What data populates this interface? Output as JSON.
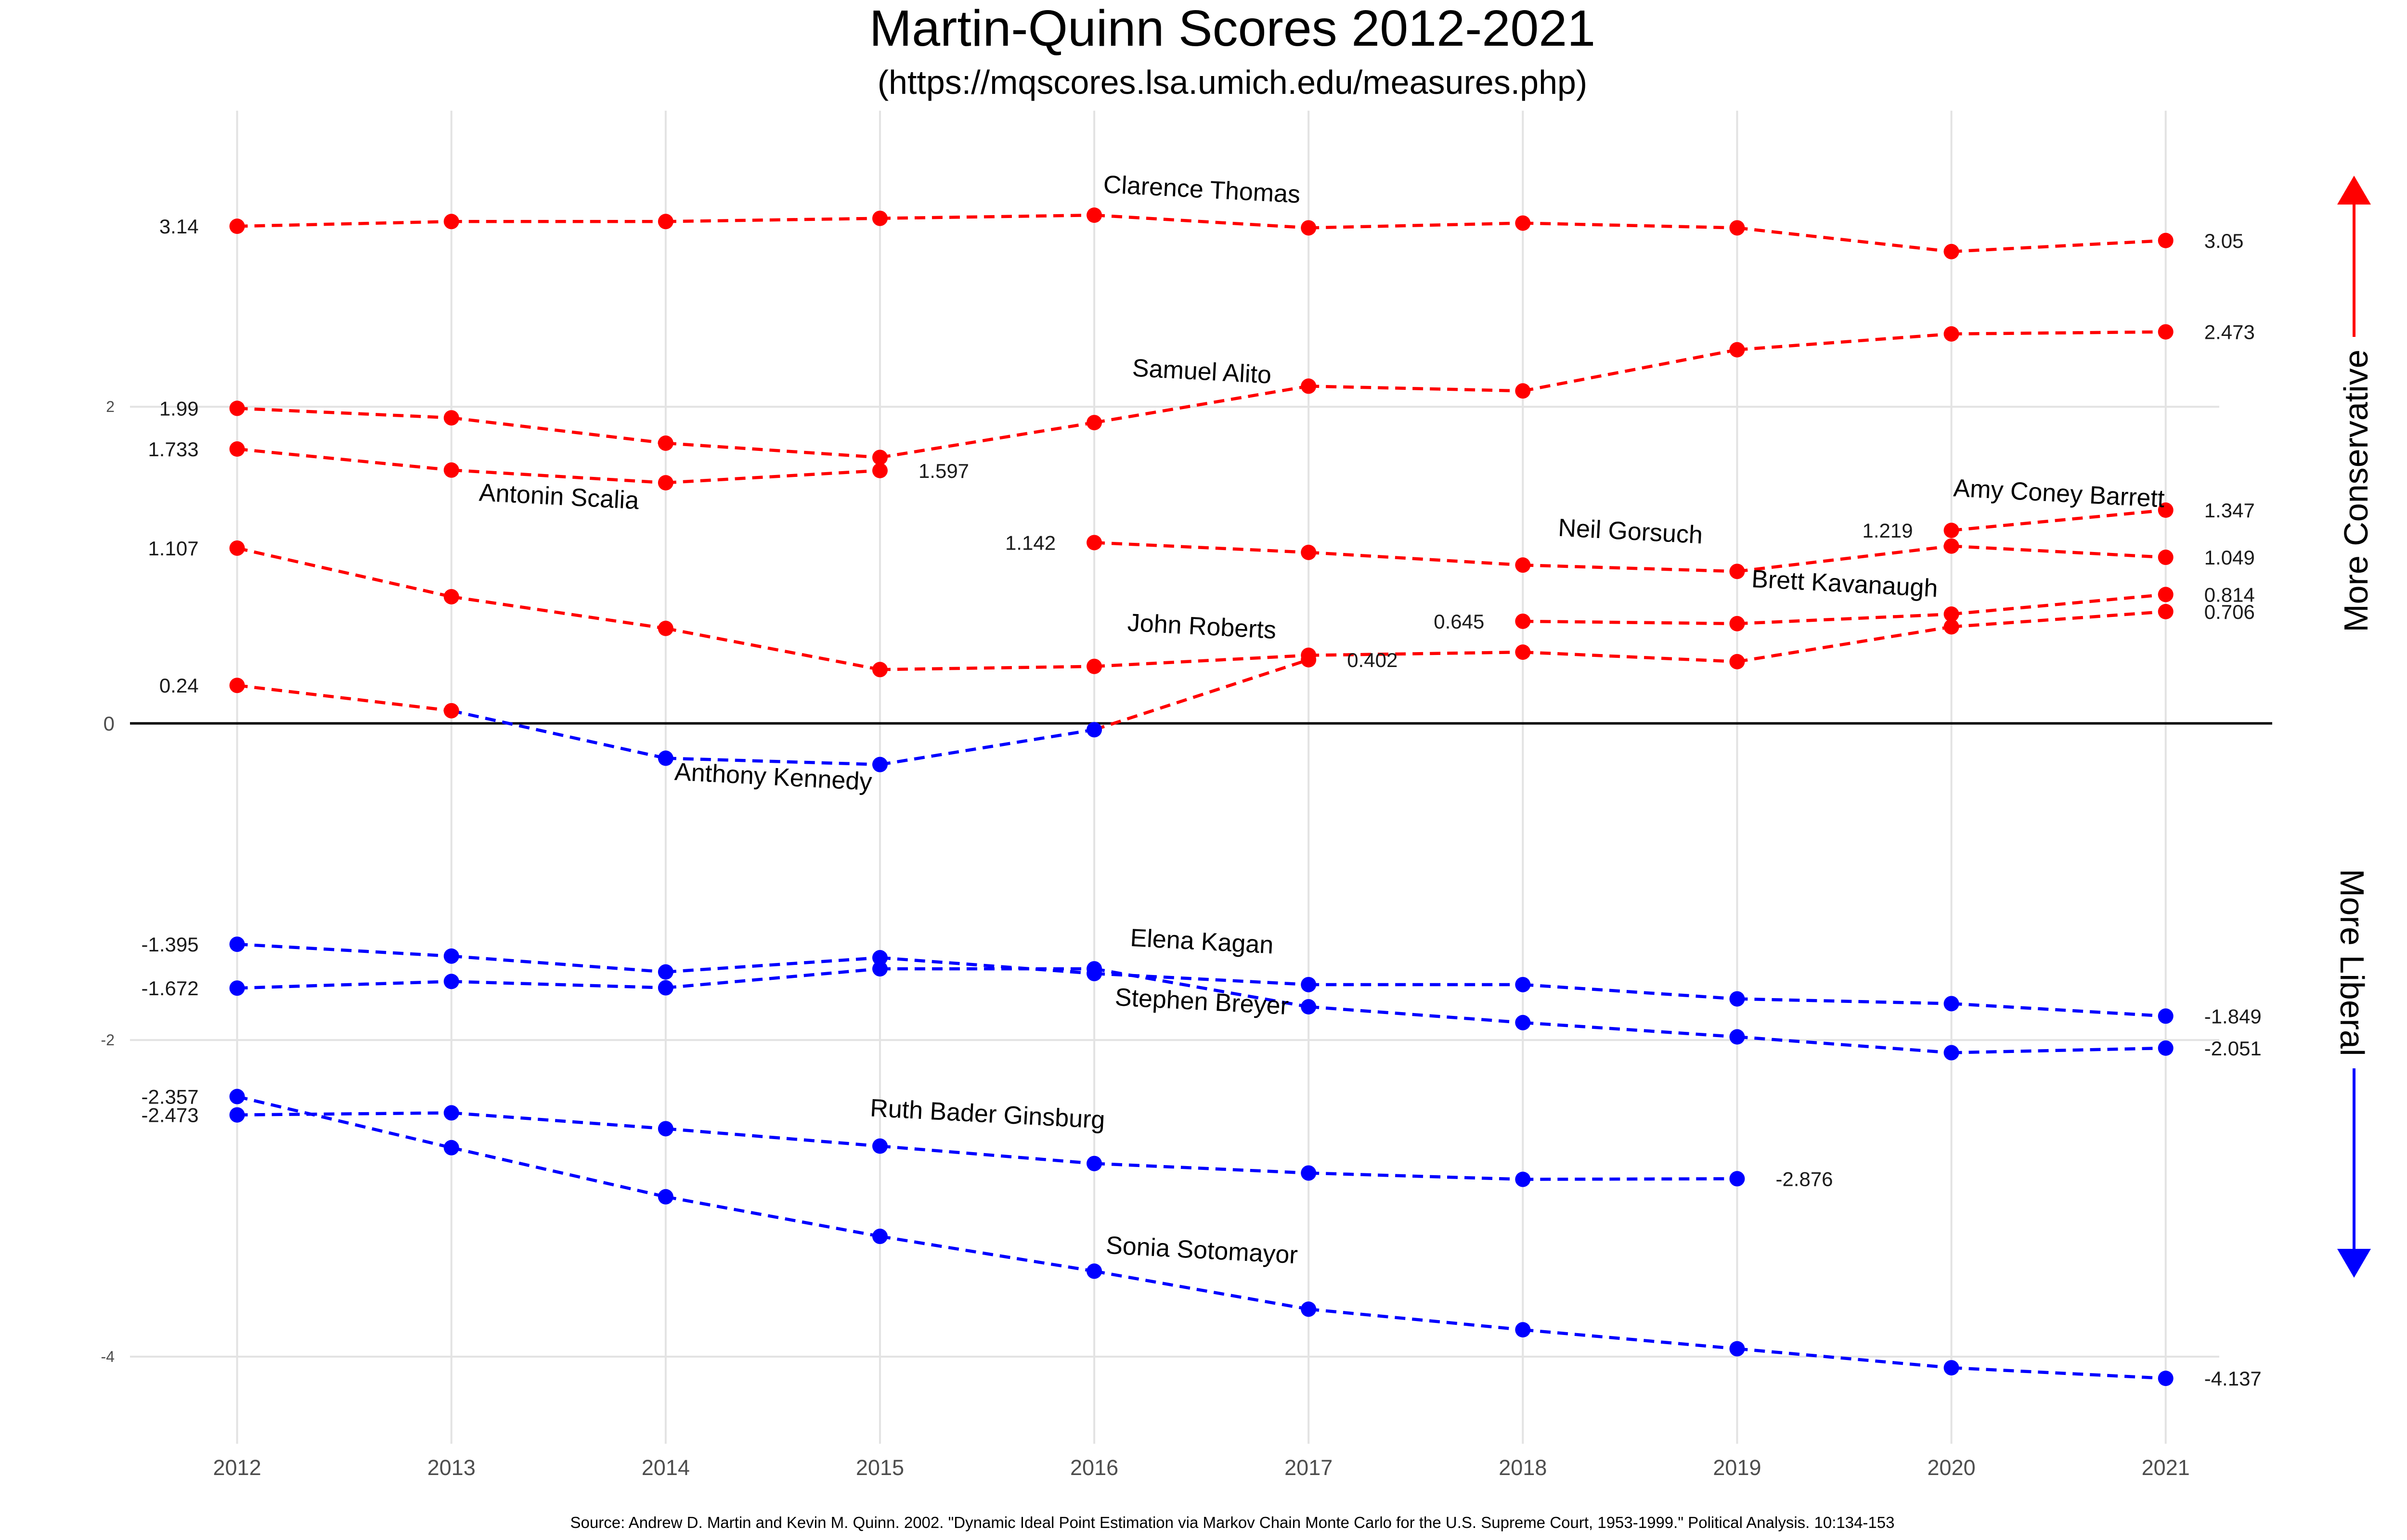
{
  "chart_data": {
    "type": "line",
    "title": "Martin-Quinn Scores 2012-2021",
    "subtitle": "(https://mqscores.lsa.umich.edu/measures.php)",
    "source": "Source:  Andrew D. Martin and Kevin M. Quinn. 2002.  \"Dynamic Ideal Point Estimation via Markov Chain Monte Carlo for the U.S. Supreme Court, 1953-1999.\"  Political Analysis. 10:134-153",
    "x_ticks": [
      "2012",
      "2013",
      "2014",
      "2015",
      "2016",
      "2017",
      "2018",
      "2019",
      "2020",
      "2021"
    ],
    "y_ticks": [
      "2",
      "0",
      "-2",
      "-4"
    ],
    "ylim": [
      -4.55,
      3.87
    ],
    "xlim": [
      2011.5,
      2021.25
    ],
    "grid": true,
    "zero_line": true,
    "conservative_label": "More Conservative",
    "liberal_label": "More Liberal",
    "colors": {
      "conservative": "#ff0000",
      "liberal": "#0000ff",
      "zero_line": "#000000"
    },
    "series": [
      {
        "name": "Clarence Thomas",
        "points": [
          [
            2012,
            3.14,
            "r"
          ],
          [
            2013,
            3.17,
            "r"
          ],
          [
            2014,
            3.17,
            "r"
          ],
          [
            2015,
            3.19,
            "r"
          ],
          [
            2016,
            3.21,
            "r"
          ],
          [
            2017,
            3.13,
            "r"
          ],
          [
            2018,
            3.16,
            "r"
          ],
          [
            2019,
            3.13,
            "r"
          ],
          [
            2020,
            2.98,
            "r"
          ],
          [
            2021,
            3.05,
            "r"
          ]
        ]
      },
      {
        "name": "Samuel Alito",
        "points": [
          [
            2012,
            1.99,
            "r"
          ],
          [
            2013,
            1.93,
            "r"
          ],
          [
            2014,
            1.77,
            "r"
          ],
          [
            2015,
            1.68,
            "r"
          ],
          [
            2016,
            1.9,
            "r"
          ],
          [
            2017,
            2.13,
            "r"
          ],
          [
            2018,
            2.1,
            "r"
          ],
          [
            2019,
            2.36,
            "r"
          ],
          [
            2020,
            2.46,
            "r"
          ],
          [
            2021,
            2.473,
            "r"
          ]
        ]
      },
      {
        "name": "Antonin Scalia",
        "points": [
          [
            2012,
            1.733,
            "r"
          ],
          [
            2013,
            1.6,
            "r"
          ],
          [
            2014,
            1.52,
            "r"
          ],
          [
            2015,
            1.597,
            "r"
          ]
        ]
      },
      {
        "name": "John Roberts",
        "points": [
          [
            2012,
            1.107,
            "r"
          ],
          [
            2013,
            0.8,
            "r"
          ],
          [
            2014,
            0.6,
            "r"
          ],
          [
            2015,
            0.34,
            "r"
          ],
          [
            2016,
            0.36,
            "r"
          ],
          [
            2017,
            0.43,
            "r"
          ],
          [
            2018,
            0.45,
            "r"
          ],
          [
            2019,
            0.39,
            "r"
          ],
          [
            2020,
            0.61,
            "r"
          ],
          [
            2021,
            0.706,
            "r"
          ]
        ]
      },
      {
        "name": "Anthony Kennedy",
        "points": [
          [
            2012,
            0.24,
            "r"
          ],
          [
            2013,
            0.08,
            "r"
          ],
          [
            2014,
            -0.22,
            "b"
          ],
          [
            2015,
            -0.26,
            "b"
          ],
          [
            2016,
            -0.04,
            "b"
          ],
          [
            2017,
            0.402,
            "r"
          ]
        ]
      },
      {
        "name": "Neil Gorsuch",
        "points": [
          [
            2016,
            1.142,
            "r"
          ],
          [
            2017,
            1.08,
            "r"
          ],
          [
            2018,
            1.0,
            "r"
          ],
          [
            2019,
            0.96,
            "r"
          ],
          [
            2020,
            1.12,
            "r"
          ],
          [
            2021,
            1.049,
            "r"
          ]
        ]
      },
      {
        "name": "Brett Kavanaugh",
        "points": [
          [
            2018,
            0.645,
            "r"
          ],
          [
            2019,
            0.63,
            "r"
          ],
          [
            2020,
            0.69,
            "r"
          ],
          [
            2021,
            0.814,
            "r"
          ]
        ]
      },
      {
        "name": "Amy Coney Barrett",
        "points": [
          [
            2020,
            1.219,
            "r"
          ],
          [
            2021,
            1.347,
            "r"
          ]
        ]
      },
      {
        "name": "Elena Kagan",
        "points": [
          [
            2012,
            -1.395,
            "b"
          ],
          [
            2013,
            -1.47,
            "b"
          ],
          [
            2014,
            -1.57,
            "b"
          ],
          [
            2015,
            -1.48,
            "b"
          ],
          [
            2016,
            -1.58,
            "b"
          ],
          [
            2017,
            -1.65,
            "b"
          ],
          [
            2018,
            -1.65,
            "b"
          ],
          [
            2019,
            -1.74,
            "b"
          ],
          [
            2020,
            -1.77,
            "b"
          ],
          [
            2021,
            -1.849,
            "b"
          ]
        ]
      },
      {
        "name": "Stephen Breyer",
        "points": [
          [
            2012,
            -1.672,
            "b"
          ],
          [
            2013,
            -1.63,
            "b"
          ],
          [
            2014,
            -1.67,
            "b"
          ],
          [
            2015,
            -1.55,
            "b"
          ],
          [
            2016,
            -1.55,
            "b"
          ],
          [
            2017,
            -1.79,
            "b"
          ],
          [
            2018,
            -1.89,
            "b"
          ],
          [
            2019,
            -1.98,
            "b"
          ],
          [
            2020,
            -2.08,
            "b"
          ],
          [
            2021,
            -2.051,
            "b"
          ]
        ]
      },
      {
        "name": "Ruth Bader Ginsburg",
        "points": [
          [
            2012,
            -2.473,
            "b"
          ],
          [
            2013,
            -2.46,
            "b"
          ],
          [
            2014,
            -2.56,
            "b"
          ],
          [
            2015,
            -2.67,
            "b"
          ],
          [
            2016,
            -2.78,
            "b"
          ],
          [
            2017,
            -2.84,
            "b"
          ],
          [
            2018,
            -2.88,
            "b"
          ],
          [
            2019,
            -2.876,
            "b"
          ]
        ]
      },
      {
        "name": "Sonia Sotomayor",
        "points": [
          [
            2012,
            -2.357,
            "b"
          ],
          [
            2013,
            -2.68,
            "b"
          ],
          [
            2014,
            -2.99,
            "b"
          ],
          [
            2015,
            -3.24,
            "b"
          ],
          [
            2016,
            -3.46,
            "b"
          ],
          [
            2017,
            -3.7,
            "b"
          ],
          [
            2018,
            -3.83,
            "b"
          ],
          [
            2019,
            -3.95,
            "b"
          ],
          [
            2020,
            -4.07,
            "b"
          ],
          [
            2021,
            -4.137,
            "b"
          ]
        ]
      }
    ],
    "value_labels": [
      {
        "text": "3.14",
        "x": 2012,
        "y": 3.14,
        "side": "left"
      },
      {
        "text": "1.99",
        "x": 2012,
        "y": 1.99,
        "side": "left"
      },
      {
        "text": "1.733",
        "x": 2012,
        "y": 1.733,
        "side": "left"
      },
      {
        "text": "1.107",
        "x": 2012,
        "y": 1.107,
        "side": "left"
      },
      {
        "text": "0.24",
        "x": 2012,
        "y": 0.24,
        "side": "left"
      },
      {
        "text": "-1.395",
        "x": 2012,
        "y": -1.395,
        "side": "left"
      },
      {
        "text": "-1.672",
        "x": 2012,
        "y": -1.672,
        "side": "left"
      },
      {
        "text": "-2.357",
        "x": 2012,
        "y": -2.357,
        "side": "left"
      },
      {
        "text": "-2.473",
        "x": 2012,
        "y": -2.473,
        "side": "left"
      },
      {
        "text": "1.597",
        "x": 2015,
        "y": 1.597,
        "side": "right"
      },
      {
        "text": "1.142",
        "x": 2016,
        "y": 1.142,
        "side": "left"
      },
      {
        "text": "0.402",
        "x": 2017,
        "y": 0.402,
        "side": "right"
      },
      {
        "text": "0.645",
        "x": 2018,
        "y": 0.645,
        "side": "left"
      },
      {
        "text": "1.219",
        "x": 2020,
        "y": 1.219,
        "side": "left"
      },
      {
        "text": "-2.876",
        "x": 2019,
        "y": -2.876,
        "side": "right"
      },
      {
        "text": "3.05",
        "x": 2021,
        "y": 3.05,
        "side": "right"
      },
      {
        "text": "2.473",
        "x": 2021,
        "y": 2.473,
        "side": "right"
      },
      {
        "text": "1.347",
        "x": 2021,
        "y": 1.347,
        "side": "right"
      },
      {
        "text": "1.049",
        "x": 2021,
        "y": 1.049,
        "side": "right"
      },
      {
        "text": "0.814",
        "x": 2021,
        "y": 0.814,
        "side": "right"
      },
      {
        "text": "0.706",
        "x": 2021,
        "y": 0.706,
        "side": "right"
      },
      {
        "text": "-1.849",
        "x": 2021,
        "y": -1.849,
        "side": "right"
      },
      {
        "text": "-2.051",
        "x": 2021,
        "y": -2.051,
        "side": "right"
      },
      {
        "text": "-4.137",
        "x": 2021,
        "y": -4.137,
        "side": "right"
      }
    ],
    "name_labels": [
      {
        "text": "Clarence Thomas",
        "x": 2016.5,
        "y": 3.32
      },
      {
        "text": "Samuel Alito",
        "x": 2016.5,
        "y": 2.17
      },
      {
        "text": "Antonin Scalia",
        "x": 2013.5,
        "y": 1.38
      },
      {
        "text": "John Roberts",
        "x": 2016.5,
        "y": 0.56
      },
      {
        "text": "Anthony Kennedy",
        "x": 2014.5,
        "y": -0.39
      },
      {
        "text": "Neil Gorsuch",
        "x": 2018.5,
        "y": 1.16
      },
      {
        "text": "Brett Kavanaugh",
        "x": 2019.5,
        "y": 0.83
      },
      {
        "text": "Amy Coney Barrett",
        "x": 2020.5,
        "y": 1.4
      },
      {
        "text": "Elena Kagan",
        "x": 2016.5,
        "y": -1.43
      },
      {
        "text": "Stephen Breyer",
        "x": 2016.5,
        "y": -1.81
      },
      {
        "text": "Ruth Bader Ginsburg",
        "x": 2015.5,
        "y": -2.52
      },
      {
        "text": "Sonia Sotomayor",
        "x": 2016.5,
        "y": -3.38
      }
    ]
  }
}
